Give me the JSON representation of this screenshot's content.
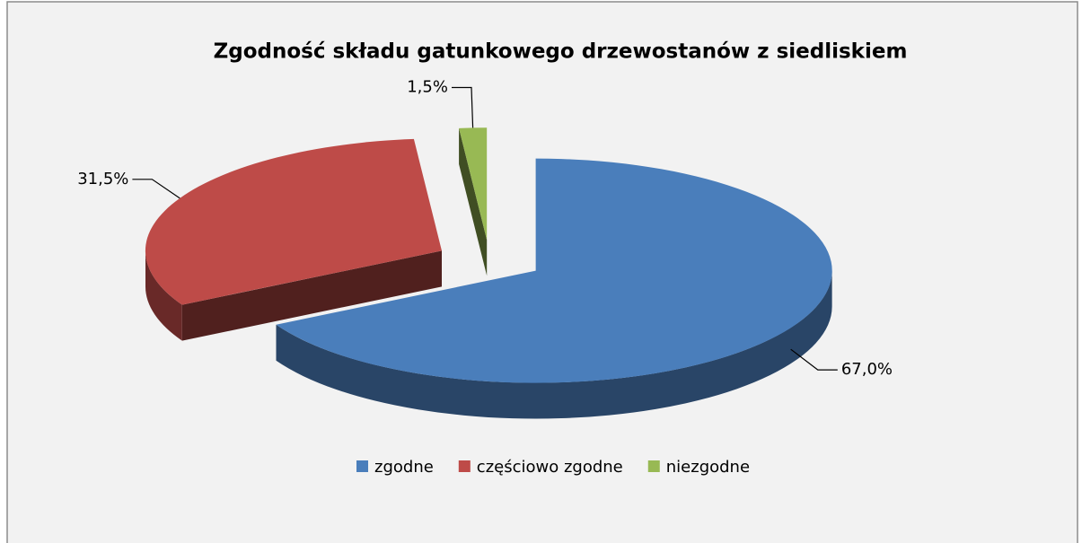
{
  "chart_data": {
    "type": "pie",
    "title": "Zgodność składu gatunkowego  drzewostanów z siedliskiem",
    "categories": [
      "zgodne",
      "częściowo zgodne",
      "niezgodne"
    ],
    "values": [
      67.0,
      31.5,
      1.5
    ],
    "value_labels": [
      "67,0%",
      "31,5%",
      "1,5%"
    ],
    "colors": [
      "#4a7ebb",
      "#be4b48",
      "#98b954"
    ],
    "legend": "bottom"
  }
}
